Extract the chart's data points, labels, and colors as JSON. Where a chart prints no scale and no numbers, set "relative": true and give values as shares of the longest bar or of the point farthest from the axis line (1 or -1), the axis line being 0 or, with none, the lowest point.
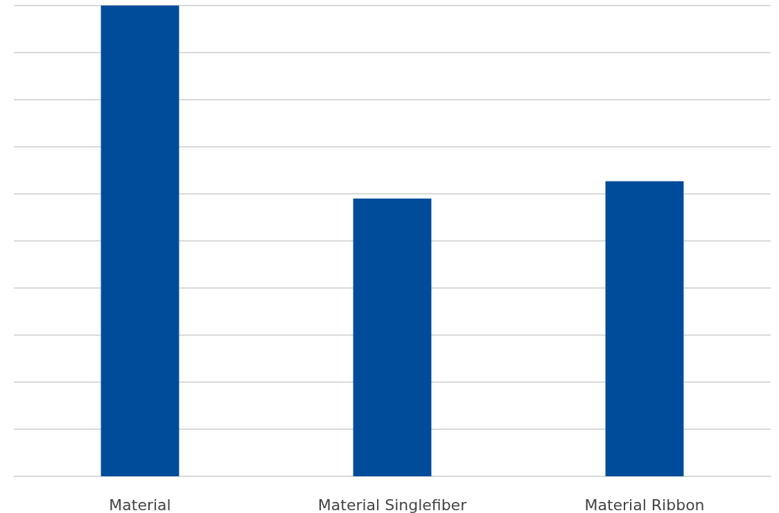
{
  "chart_data": {
    "type": "bar",
    "relative": true,
    "categories": [
      "Material",
      "Material Singlefiber",
      "Material Ribbon"
    ],
    "values": [
      1,
      0.59,
      0.627
    ],
    "color": "#004c9b",
    "grid": true
  }
}
